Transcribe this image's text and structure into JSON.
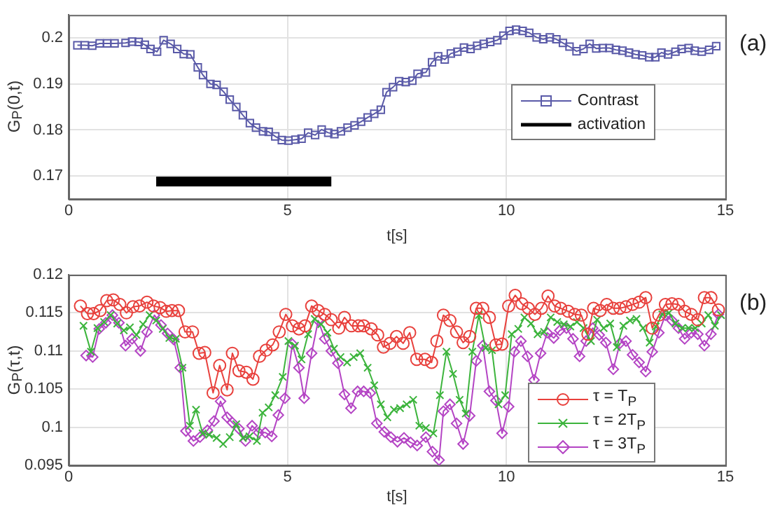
{
  "chart_data": [
    {
      "type": "line",
      "title": "(a)",
      "xlabel": "t[s]",
      "ylabel": "G$_{P}$(0,t)",
      "xlim": [
        0,
        15
      ],
      "xticks": [
        0,
        5,
        10,
        15
      ],
      "ylim": [
        0.165,
        0.205
      ],
      "yticks": [
        0.17,
        0.18,
        0.19,
        0.2
      ],
      "grid": true,
      "legend": "right",
      "line_style": "solid",
      "series": [
        {
          "name": "Contrast",
          "color": "#5a5aa8",
          "marker": "square",
          "x": [
            0.2,
            0.37,
            0.54,
            0.71,
            0.88,
            1.05,
            1.3,
            1.45,
            1.6,
            1.74,
            1.87,
            2.02,
            2.17,
            2.33,
            2.48,
            2.63,
            2.78,
            2.95,
            3.07,
            3.24,
            3.38,
            3.54,
            3.68,
            3.83,
            3.98,
            4.14,
            4.28,
            4.44,
            4.57,
            4.72,
            4.87,
            5.02,
            5.18,
            5.32,
            5.47,
            5.63,
            5.78,
            5.93,
            6.07,
            6.22,
            6.37,
            6.53,
            6.68,
            6.83,
            6.98,
            7.13,
            7.26,
            7.41,
            7.55,
            7.7,
            7.85,
            7.97,
            8.16,
            8.3,
            8.44,
            8.59,
            8.73,
            8.88,
            9.03,
            9.18,
            9.33,
            9.48,
            9.63,
            9.79,
            9.93,
            10.07,
            10.22,
            10.37,
            10.52,
            10.69,
            10.84,
            10.99,
            11.14,
            11.29,
            11.44,
            11.6,
            11.76,
            11.9,
            12.05,
            12.2,
            12.35,
            12.5,
            12.65,
            12.8,
            12.95,
            13.1,
            13.26,
            13.4,
            13.54,
            13.69,
            13.86,
            14.0,
            14.16,
            14.3,
            14.46,
            14.63,
            14.79
          ],
          "values": [
            0.1984,
            0.1984,
            0.1983,
            0.1988,
            0.1988,
            0.1988,
            0.1989,
            0.1992,
            0.1991,
            0.1985,
            0.1976,
            0.197,
            0.1995,
            0.1987,
            0.1976,
            0.1965,
            0.1964,
            0.1936,
            0.1919,
            0.19,
            0.1898,
            0.1883,
            0.1866,
            0.185,
            0.1832,
            0.1815,
            0.1805,
            0.1797,
            0.1796,
            0.1786,
            0.1778,
            0.1777,
            0.1779,
            0.1781,
            0.1794,
            0.1789,
            0.1801,
            0.1794,
            0.1791,
            0.1797,
            0.1805,
            0.181,
            0.1818,
            0.1827,
            0.1835,
            0.1844,
            0.1882,
            0.1893,
            0.1906,
            0.1904,
            0.1907,
            0.1922,
            0.1925,
            0.1947,
            0.196,
            0.1953,
            0.1966,
            0.197,
            0.1979,
            0.1976,
            0.1983,
            0.1987,
            0.1991,
            0.1995,
            0.2005,
            0.2015,
            0.2018,
            0.2015,
            0.2011,
            0.2001,
            0.1997,
            0.2001,
            0.1997,
            0.1989,
            0.1981,
            0.1971,
            0.1976,
            0.1987,
            0.1977,
            0.1978,
            0.1978,
            0.1974,
            0.1972,
            0.1968,
            0.1964,
            0.1962,
            0.1958,
            0.1958,
            0.1968,
            0.1964,
            0.197,
            0.1976,
            0.1978,
            0.1972,
            0.197,
            0.1974,
            0.1982
          ]
        },
        {
          "name": "activation",
          "color": "#000000",
          "marker": "none",
          "x": [
            2,
            6
          ],
          "values": [
            0.1688,
            0.1688
          ]
        }
      ]
    },
    {
      "type": "line",
      "title": "(b)",
      "xlabel": "t[s]",
      "ylabel": "G$_{P}$(τ,t)",
      "xlim": [
        0,
        15
      ],
      "xticks": [
        0,
        5,
        10,
        15
      ],
      "ylim": [
        0.095,
        0.12
      ],
      "yticks": [
        0.095,
        0.1,
        0.105,
        0.11,
        0.115,
        0.12
      ],
      "grid": true,
      "legend": "bottom right",
      "line_style": "solid",
      "series": [
        {
          "name": "τ = T$_{P}$",
          "color": "#e8403c",
          "marker": "circle",
          "x": [
            0.27,
            0.43,
            0.57,
            0.72,
            0.87,
            1.02,
            1.17,
            1.32,
            1.47,
            1.62,
            1.79,
            1.94,
            2.09,
            2.23,
            2.36,
            2.51,
            2.66,
            2.83,
            2.98,
            3.11,
            3.3,
            3.45,
            3.62,
            3.74,
            3.89,
            4.06,
            4.21,
            4.36,
            4.51,
            4.66,
            4.81,
            4.96,
            5.11,
            5.26,
            5.4,
            5.55,
            5.7,
            5.85,
            6.0,
            6.17,
            6.3,
            6.46,
            6.62,
            6.74,
            6.91,
            7.06,
            7.19,
            7.34,
            7.49,
            7.64,
            7.79,
            7.95,
            8.14,
            8.29,
            8.41,
            8.56,
            8.71,
            8.86,
            9.01,
            9.16,
            9.31,
            9.46,
            9.61,
            9.76,
            9.9,
            10.05,
            10.2,
            10.35,
            10.5,
            10.65,
            10.8,
            10.95,
            11.1,
            11.24,
            11.41,
            11.56,
            11.71,
            11.86,
            11.99,
            12.14,
            12.29,
            12.44,
            12.59,
            12.73,
            12.88,
            13.03,
            13.18,
            13.33,
            13.48,
            13.63,
            13.78,
            13.93,
            14.07,
            14.22,
            14.37,
            14.52,
            14.67,
            14.84
          ],
          "values": [
            0.1159,
            0.1149,
            0.1149,
            0.1153,
            0.1166,
            0.1167,
            0.1161,
            0.115,
            0.1158,
            0.1159,
            0.1164,
            0.1159,
            0.1157,
            0.1152,
            0.1153,
            0.1153,
            0.1125,
            0.1125,
            0.1097,
            0.1098,
            0.1045,
            0.1081,
            0.1049,
            0.1097,
            0.1074,
            0.1072,
            0.1063,
            0.1093,
            0.1101,
            0.1108,
            0.1125,
            0.1148,
            0.1133,
            0.1129,
            0.1133,
            0.1159,
            0.1153,
            0.1148,
            0.1141,
            0.113,
            0.1144,
            0.1133,
            0.1133,
            0.1133,
            0.1129,
            0.1121,
            0.1105,
            0.111,
            0.1119,
            0.111,
            0.1124,
            0.1089,
            0.1089,
            0.1085,
            0.1113,
            0.1147,
            0.114,
            0.1125,
            0.1111,
            0.1119,
            0.1156,
            0.1156,
            0.1144,
            0.1108,
            0.1109,
            0.1159,
            0.1173,
            0.1162,
            0.1156,
            0.1148,
            0.1156,
            0.1172,
            0.1159,
            0.1156,
            0.1152,
            0.1148,
            0.1147,
            0.1122,
            0.1156,
            0.1153,
            0.1161,
            0.1156,
            0.1156,
            0.1158,
            0.1161,
            0.1164,
            0.117,
            0.113,
            0.1147,
            0.1161,
            0.1162,
            0.1161,
            0.1152,
            0.1148,
            0.1141,
            0.117,
            0.117,
            0.1154
          ]
        },
        {
          "name": "τ = 2T$_{P}$",
          "color": "#3cb43c",
          "marker": "cross",
          "x": [
            0.34,
            0.51,
            0.66,
            0.81,
            0.96,
            1.11,
            1.26,
            1.4,
            1.55,
            1.7,
            1.85,
            2.0,
            2.15,
            2.3,
            2.45,
            2.6,
            2.77,
            2.91,
            3.06,
            3.21,
            3.38,
            3.53,
            3.68,
            3.83,
            3.98,
            4.13,
            4.3,
            4.43,
            4.57,
            4.72,
            4.89,
            5.02,
            5.17,
            5.32,
            5.47,
            5.62,
            5.77,
            5.91,
            6.06,
            6.21,
            6.36,
            6.51,
            6.66,
            6.83,
            6.98,
            7.13,
            7.28,
            7.43,
            7.57,
            7.72,
            7.87,
            8.01,
            8.16,
            8.33,
            8.48,
            8.63,
            8.78,
            8.93,
            9.07,
            9.22,
            9.37,
            9.52,
            9.67,
            9.82,
            9.97,
            10.12,
            10.27,
            10.41,
            10.56,
            10.71,
            10.86,
            11.01,
            11.16,
            11.31,
            11.46,
            11.61,
            11.76,
            11.93,
            12.07,
            12.22,
            12.37,
            12.52,
            12.67,
            12.82,
            12.97,
            13.12,
            13.27,
            13.41,
            13.56,
            13.71,
            13.86,
            14.01,
            14.16,
            14.31,
            14.46,
            14.61,
            14.76,
            14.9
          ],
          "values": [
            0.1133,
            0.1099,
            0.113,
            0.1138,
            0.1147,
            0.1136,
            0.1127,
            0.1131,
            0.1121,
            0.1135,
            0.1147,
            0.114,
            0.1129,
            0.1117,
            0.1116,
            0.1078,
            0.1002,
            0.1023,
            0.0992,
            0.099,
            0.0986,
            0.0978,
            0.0987,
            0.1004,
            0.0986,
            0.0988,
            0.0982,
            0.1019,
            0.1026,
            0.1042,
            0.1066,
            0.1113,
            0.1107,
            0.1089,
            0.1122,
            0.1142,
            0.1135,
            0.1124,
            0.1103,
            0.1092,
            0.1085,
            0.1092,
            0.1097,
            0.1078,
            0.1055,
            0.103,
            0.1013,
            0.1023,
            0.1025,
            0.103,
            0.1036,
            0.1002,
            0.0999,
            0.0992,
            0.1042,
            0.1099,
            0.107,
            0.1036,
            0.1018,
            0.1099,
            0.1147,
            0.1104,
            0.1101,
            0.103,
            0.1042,
            0.1122,
            0.1129,
            0.1144,
            0.1136,
            0.1122,
            0.1125,
            0.1144,
            0.1138,
            0.1135,
            0.1132,
            0.1138,
            0.113,
            0.1113,
            0.1141,
            0.113,
            0.1136,
            0.1105,
            0.1133,
            0.114,
            0.1142,
            0.113,
            0.1111,
            0.1132,
            0.1148,
            0.115,
            0.1136,
            0.113,
            0.113,
            0.113,
            0.1136,
            0.1147,
            0.1133,
            0.1147
          ]
        },
        {
          "name": "τ = 3T$_{P}$",
          "color": "#b444c4",
          "marker": "diamond",
          "x": [
            0.4,
            0.55,
            0.7,
            0.85,
            1.0,
            1.15,
            1.3,
            1.45,
            1.64,
            1.79,
            1.96,
            2.11,
            2.26,
            2.4,
            2.55,
            2.68,
            2.85,
            3.0,
            3.17,
            3.32,
            3.47,
            3.62,
            3.74,
            3.89,
            4.04,
            4.19,
            4.34,
            4.49,
            4.64,
            4.79,
            4.94,
            5.11,
            5.26,
            5.38,
            5.55,
            5.7,
            5.85,
            6.0,
            6.15,
            6.3,
            6.45,
            6.6,
            6.74,
            6.89,
            7.04,
            7.21,
            7.36,
            7.51,
            7.66,
            7.81,
            7.96,
            8.16,
            8.31,
            8.46,
            8.56,
            8.71,
            8.86,
            9.01,
            9.16,
            9.31,
            9.46,
            9.61,
            9.76,
            9.9,
            10.05,
            10.18,
            10.33,
            10.48,
            10.63,
            10.78,
            10.93,
            11.08,
            11.22,
            11.37,
            11.52,
            11.67,
            11.82,
            11.97,
            12.12,
            12.27,
            12.44,
            12.59,
            12.73,
            12.88,
            13.03,
            13.18,
            13.33,
            13.48,
            13.63,
            13.78,
            13.93,
            14.07,
            14.22,
            14.37,
            14.52,
            14.67,
            14.84
          ],
          "values": [
            0.1094,
            0.1092,
            0.1129,
            0.1137,
            0.1147,
            0.1137,
            0.1107,
            0.1116,
            0.11,
            0.1125,
            0.1147,
            0.1134,
            0.1123,
            0.1115,
            0.1078,
            0.0995,
            0.0982,
            0.0987,
            0.0996,
            0.1008,
            0.1034,
            0.1013,
            0.1006,
            0.0998,
            0.0982,
            0.1002,
            0.0993,
            0.0993,
            0.0988,
            0.1016,
            0.1038,
            0.1109,
            0.1078,
            0.1038,
            0.1097,
            0.114,
            0.1116,
            0.11,
            0.1084,
            0.1043,
            0.1025,
            0.1047,
            0.1047,
            0.1045,
            0.1005,
            0.0994,
            0.0987,
            0.0981,
            0.0986,
            0.098,
            0.0976,
            0.0987,
            0.0968,
            0.0957,
            0.1021,
            0.103,
            0.1005,
            0.0978,
            0.1015,
            0.1087,
            0.1107,
            0.1047,
            0.1035,
            0.0992,
            0.1027,
            0.1099,
            0.1113,
            0.1093,
            0.1062,
            0.1097,
            0.1124,
            0.1117,
            0.1127,
            0.113,
            0.1116,
            0.1093,
            0.1113,
            0.113,
            0.1121,
            0.1111,
            0.1076,
            0.111,
            0.1113,
            0.1095,
            0.1085,
            0.1073,
            0.1099,
            0.1124,
            0.1147,
            0.114,
            0.113,
            0.1116,
            0.1124,
            0.1122,
            0.1107,
            0.1122,
            0.1148
          ]
        }
      ]
    }
  ]
}
